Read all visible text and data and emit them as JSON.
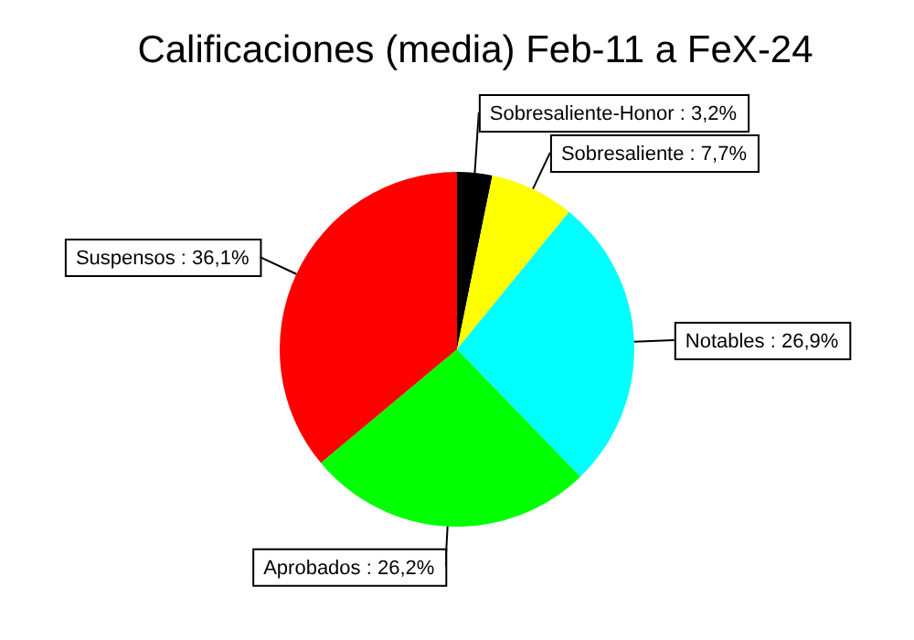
{
  "chart_data": {
    "type": "pie",
    "title": "Calificaciones (media) Feb-11 a FeX-24",
    "categories": [
      "Sobresaliente-Honor",
      "Sobresaliente",
      "Notables",
      "Aprobados",
      "Suspensos"
    ],
    "values": [
      3.2,
      7.7,
      26.9,
      26.2,
      36.1
    ],
    "colors": [
      "#000000",
      "#ffff00",
      "#00ffff",
      "#00ff00",
      "#ff0000"
    ],
    "value_labels": [
      "3,2%",
      "7,7%",
      "26,9%",
      "26,2%",
      "36,1%"
    ]
  }
}
